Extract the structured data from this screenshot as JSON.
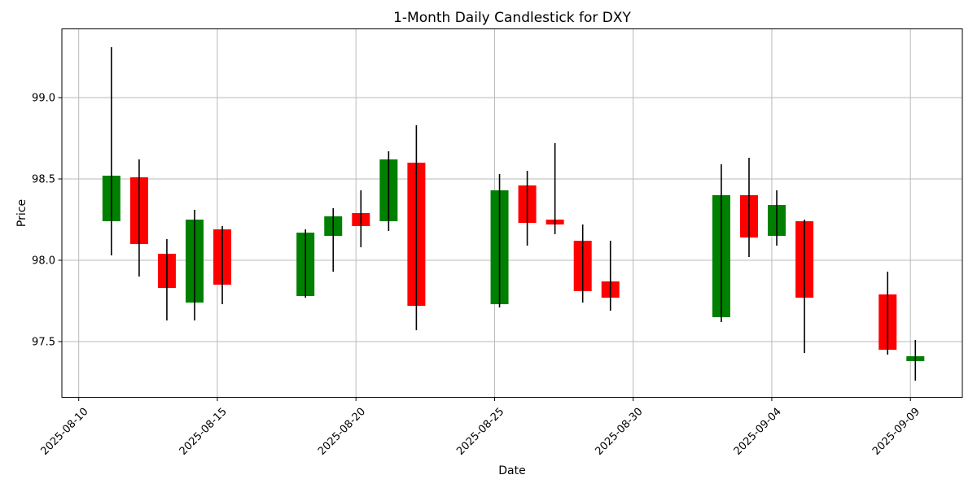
{
  "chart_data": {
    "type": "candlestick",
    "title": "1-Month Daily Candlestick for DXY",
    "xlabel": "Date",
    "ylabel": "Price",
    "grid": true,
    "legend_position": "none",
    "up_color": "#008000",
    "down_color": "#ff0000",
    "wick_color": "#000000",
    "ylim": [
      97.16,
      99.42
    ],
    "xlim_days": [
      -0.6,
      31.85
    ],
    "y_ticks": [
      {
        "value": 99.0,
        "label": "99.0"
      },
      {
        "value": 98.5,
        "label": "98.5"
      },
      {
        "value": 98.0,
        "label": "98.0"
      },
      {
        "value": 97.5,
        "label": "97.5"
      }
    ],
    "x_ticks": [
      {
        "day": 0,
        "label": "2025-08-10"
      },
      {
        "day": 5,
        "label": "2025-08-15"
      },
      {
        "day": 10,
        "label": "2025-08-20"
      },
      {
        "day": 15,
        "label": "2025-08-25"
      },
      {
        "day": 20,
        "label": "2025-08-30"
      },
      {
        "day": 25,
        "label": "2025-09-04"
      },
      {
        "day": 30,
        "label": "2025-09-09"
      }
    ],
    "candles": [
      {
        "date": "2025-08-11",
        "day": 1,
        "open": 98.24,
        "high": 99.31,
        "low": 98.03,
        "close": 98.52
      },
      {
        "date": "2025-08-12",
        "day": 2,
        "open": 98.51,
        "high": 98.62,
        "low": 97.9,
        "close": 98.1
      },
      {
        "date": "2025-08-13",
        "day": 3,
        "open": 98.04,
        "high": 98.13,
        "low": 97.63,
        "close": 97.83
      },
      {
        "date": "2025-08-14",
        "day": 4,
        "open": 97.74,
        "high": 98.31,
        "low": 97.63,
        "close": 98.25
      },
      {
        "date": "2025-08-15",
        "day": 5,
        "open": 98.19,
        "high": 98.21,
        "low": 97.73,
        "close": 97.85
      },
      {
        "date": "2025-08-18",
        "day": 8,
        "open": 97.78,
        "high": 98.19,
        "low": 97.77,
        "close": 98.17
      },
      {
        "date": "2025-08-19",
        "day": 9,
        "open": 98.15,
        "high": 98.32,
        "low": 97.93,
        "close": 98.27
      },
      {
        "date": "2025-08-20",
        "day": 10,
        "open": 98.29,
        "high": 98.43,
        "low": 98.08,
        "close": 98.21
      },
      {
        "date": "2025-08-21",
        "day": 11,
        "open": 98.24,
        "high": 98.67,
        "low": 98.18,
        "close": 98.62
      },
      {
        "date": "2025-08-22",
        "day": 12,
        "open": 98.6,
        "high": 98.83,
        "low": 97.57,
        "close": 97.72
      },
      {
        "date": "2025-08-25",
        "day": 15,
        "open": 97.73,
        "high": 98.53,
        "low": 97.71,
        "close": 98.43
      },
      {
        "date": "2025-08-26",
        "day": 16,
        "open": 98.46,
        "high": 98.55,
        "low": 98.09,
        "close": 98.23
      },
      {
        "date": "2025-08-27",
        "day": 17,
        "open": 98.25,
        "high": 98.72,
        "low": 98.16,
        "close": 98.22
      },
      {
        "date": "2025-08-28",
        "day": 18,
        "open": 98.12,
        "high": 98.22,
        "low": 97.74,
        "close": 97.81
      },
      {
        "date": "2025-08-29",
        "day": 19,
        "open": 97.87,
        "high": 98.12,
        "low": 97.69,
        "close": 97.77
      },
      {
        "date": "2025-09-02",
        "day": 23,
        "open": 97.65,
        "high": 98.59,
        "low": 97.62,
        "close": 98.4
      },
      {
        "date": "2025-09-03",
        "day": 24,
        "open": 98.4,
        "high": 98.63,
        "low": 98.02,
        "close": 98.14
      },
      {
        "date": "2025-09-04",
        "day": 25,
        "open": 98.15,
        "high": 98.43,
        "low": 98.09,
        "close": 98.34
      },
      {
        "date": "2025-09-05",
        "day": 26,
        "open": 98.24,
        "high": 98.25,
        "low": 97.43,
        "close": 97.77
      },
      {
        "date": "2025-09-08",
        "day": 29,
        "open": 97.79,
        "high": 97.93,
        "low": 97.42,
        "close": 97.45
      },
      {
        "date": "2025-09-09",
        "day": 30,
        "open": 97.38,
        "high": 97.51,
        "low": 97.26,
        "close": 97.41
      }
    ]
  }
}
